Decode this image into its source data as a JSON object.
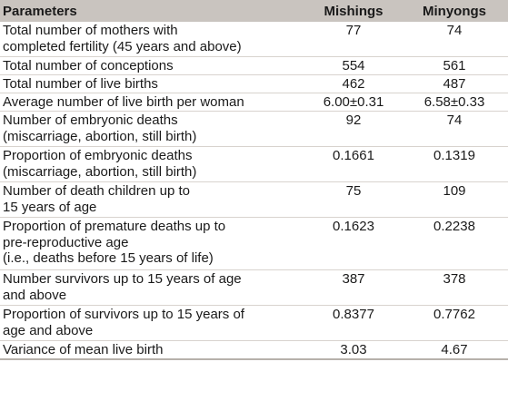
{
  "headers": [
    "Parameters",
    "Mishings",
    "Minyongs"
  ],
  "rows": [
    {
      "parameter": "Total number of mothers with completed fertility (45 years and above)",
      "mishings": "77",
      "minyongs": "74"
    },
    {
      "parameter": "Total number of conceptions",
      "mishings": "554",
      "minyongs": "561"
    },
    {
      "parameter": "Total number of live births",
      "mishings": "462",
      "minyongs": "487"
    },
    {
      "parameter": "Average number of live birth per woman",
      "mishings": "6.00±0.31",
      "minyongs": "6.58±0.33"
    },
    {
      "parameter": "Number of embryonic deaths (miscarriage, abortion, still birth)",
      "mishings": "92",
      "minyongs": "74"
    },
    {
      "parameter": "Proportion of embryonic deaths (miscarriage, abortion, still birth)",
      "mishings": "0.1661",
      "minyongs": "0.1319"
    },
    {
      "parameter": "Number of death children up to 15 years of age",
      "mishings": "75",
      "minyongs": "109"
    },
    {
      "parameter": "Proportion of premature deaths up to pre-reproductive age (i.e., deaths before 15 years of life)",
      "mishings": "0.1623",
      "minyongs": "0.2238"
    },
    {
      "parameter": "Number survivors up to 15 years of age and above",
      "mishings": "387",
      "minyongs": "378"
    },
    {
      "parameter": "Proportion of survivors up to 15 years of age and above",
      "mishings": "0.8377",
      "minyongs": "0.7762"
    },
    {
      "parameter": "Variance of mean live birth",
      "mishings": "3.03",
      "minyongs": "4.67"
    }
  ],
  "line_breaks": [
    [
      "Total number of mothers with",
      "completed fertility (45 years and above)"
    ],
    [
      "Total number of conceptions"
    ],
    [
      "Total number of live births"
    ],
    [
      "Average number of live birth per woman"
    ],
    [
      "Number of embryonic deaths",
      "(miscarriage, abortion, still birth)"
    ],
    [
      "Proportion of embryonic deaths",
      "(miscarriage, abortion, still birth)"
    ],
    [
      "Number of death children up to",
      "15 years of age"
    ],
    [
      "Proportion of premature deaths up to",
      "pre-reproductive age",
      "(i.e., deaths before 15 years of life)"
    ],
    [
      "Number survivors up to 15 years of age",
      "and above"
    ],
    [
      "Proportion of survivors up to 15 years of",
      "age and above"
    ],
    [
      "Variance of mean live birth"
    ]
  ]
}
